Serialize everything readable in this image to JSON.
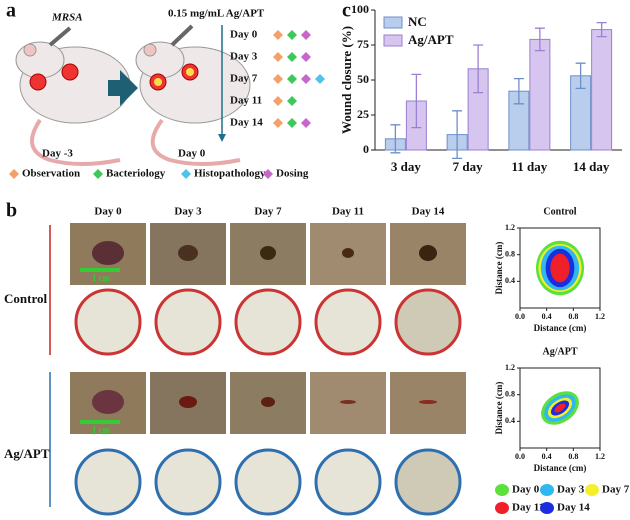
{
  "panel_a": {
    "label": "a",
    "strain": "MRSA",
    "dose": "0.15 mg/mL Ag/APT",
    "before": "Day -3",
    "after": "Day 0",
    "timeline": [
      "Day 0",
      "Day 3",
      "Day 7",
      "Day 11",
      "Day 14"
    ],
    "legend": [
      {
        "name": "Observation",
        "color": "#f4a06a"
      },
      {
        "name": "Bacteriology",
        "color": "#3cc95a"
      },
      {
        "name": "Histopathology",
        "color": "#4fc3e8"
      },
      {
        "name": "Dosing",
        "color": "#c667c9"
      }
    ]
  },
  "panel_b": {
    "label": "b",
    "columns": [
      "Day 0",
      "Day 3",
      "Day 7",
      "Day 11",
      "Day 14"
    ],
    "rows": [
      "Control",
      "Ag/APT"
    ],
    "scale_bar": "1 cm",
    "legend": [
      {
        "name": "Day 0",
        "color": "#5be03c"
      },
      {
        "name": "Day 3",
        "color": "#2fb8f0"
      },
      {
        "name": "Day 7",
        "color": "#f5ee2a"
      },
      {
        "name": "Day 11",
        "color": "#f0202a"
      },
      {
        "name": "Day 14",
        "color": "#1a2ee0"
      }
    ]
  },
  "panel_c": {
    "label": "c"
  },
  "chart_data": [
    {
      "type": "bar",
      "ylabel": "Wound closure (%)",
      "categories": [
        "3 day",
        "7 day",
        "11 day",
        "14 day"
      ],
      "series": [
        {
          "name": "NC",
          "color": "#b9cdec",
          "edge": "#6f8fc9",
          "values": [
            8,
            11,
            42,
            53
          ],
          "errors": [
            10,
            17,
            9,
            9
          ]
        },
        {
          "name": "Ag/APT",
          "color": "#d6c6ef",
          "edge": "#9b7fd0",
          "values": [
            35,
            58,
            79,
            86
          ],
          "errors": [
            19,
            17,
            8,
            5
          ]
        }
      ],
      "ylim": [
        0,
        100
      ],
      "yticks": [
        0,
        25,
        50,
        75,
        100
      ]
    },
    {
      "type": "contour",
      "title": "Control",
      "xlabel": "Distance (cm)",
      "ylabel": "Distance (cm)",
      "xlim": [
        0,
        1.2
      ],
      "ylim": [
        0,
        1.2
      ],
      "xticks": [
        {
          "value": 0,
          "label": "0.0"
        },
        0.4,
        0.8,
        1.2
      ],
      "yticks": [
        0.4,
        0.8,
        1.2
      ]
    },
    {
      "type": "contour",
      "title": "Ag/APT",
      "xlabel": "Distance (cm)",
      "ylabel": "Distance (cm)",
      "xlim": [
        0,
        1.2
      ],
      "ylim": [
        0,
        1.2
      ],
      "xticks": [
        {
          "value": 0,
          "label": "0.0"
        },
        0.4,
        0.8,
        1.2
      ],
      "yticks": [
        0.4,
        0.8,
        1.2
      ]
    }
  ]
}
